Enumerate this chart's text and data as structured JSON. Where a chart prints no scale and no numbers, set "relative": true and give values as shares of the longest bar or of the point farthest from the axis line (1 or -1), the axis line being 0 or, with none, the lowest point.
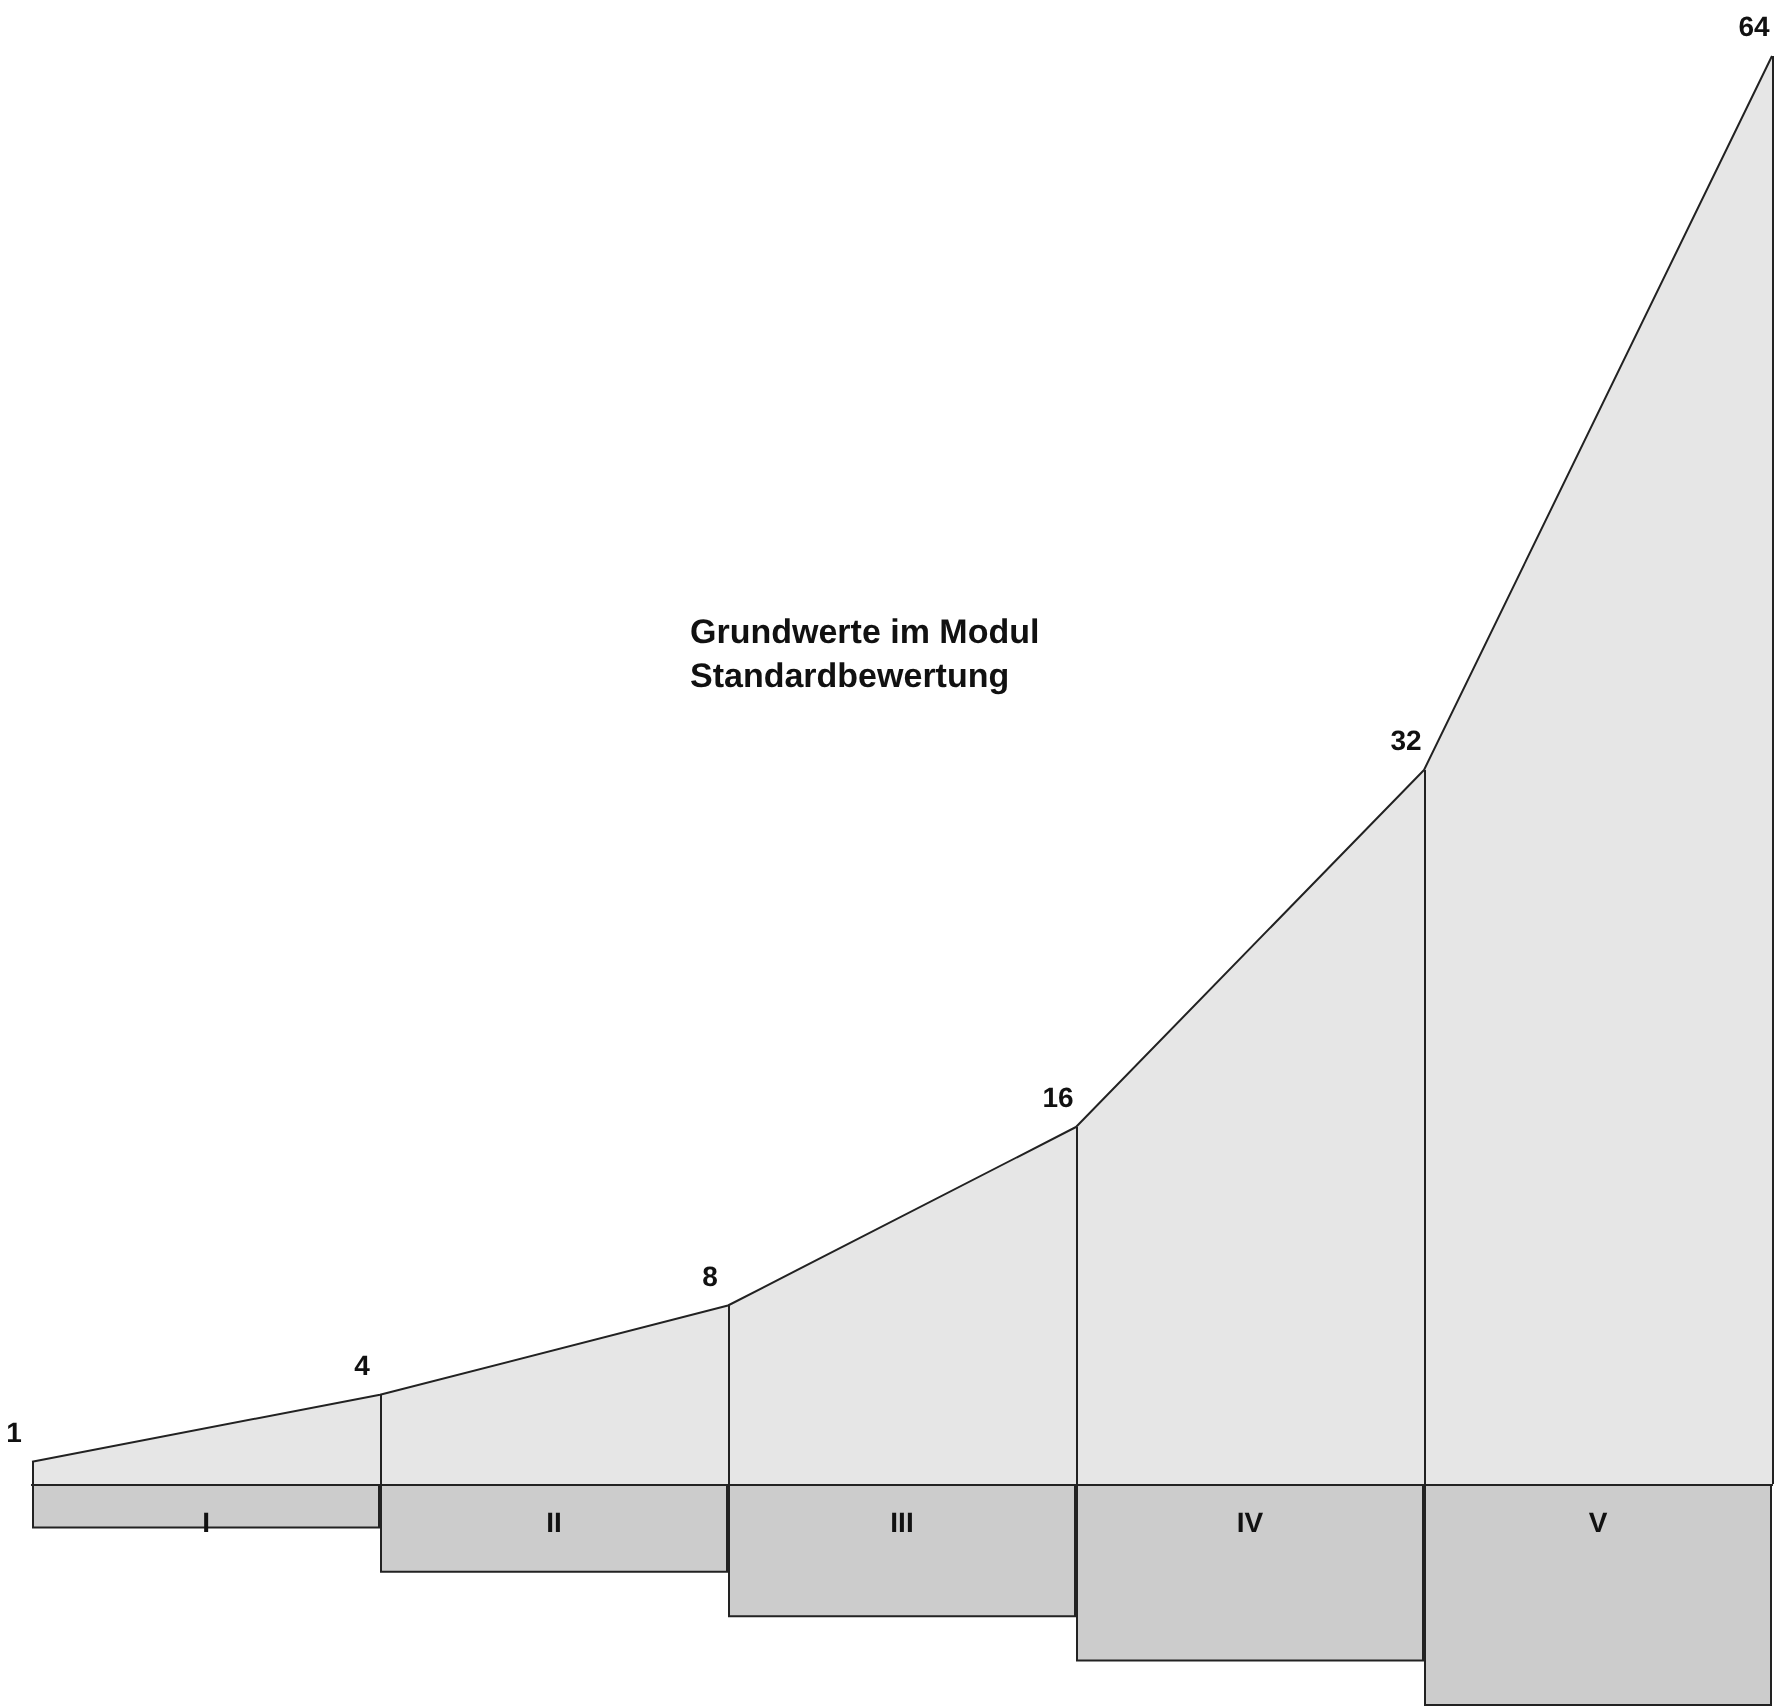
{
  "chart_data": [
    {
      "type": "area",
      "title": "Grundwerte im Modul\nStandardbewertung",
      "categories": [
        null,
        null,
        null,
        null,
        null,
        null
      ],
      "values": [
        1,
        4,
        8,
        16,
        32,
        64
      ],
      "color": "#e6e6e6",
      "data_labels": true,
      "marker": "none",
      "tick_labels": false
    },
    {
      "type": "bar",
      "relative": true,
      "categories": [
        "I",
        "II",
        "III",
        "IV",
        "V"
      ],
      "values": [
        -0.2,
        -0.4,
        -0.6,
        -0.8,
        -1
      ],
      "color": "#cccccc"
    }
  ]
}
